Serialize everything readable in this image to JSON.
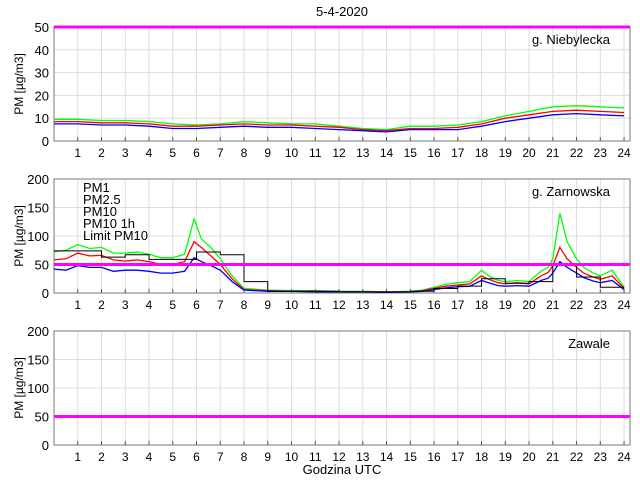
{
  "chart_data": {
    "type": "line",
    "title": "5-4-2020",
    "xlabel": "Godzina UTC",
    "xlim": [
      0,
      24.25
    ],
    "xticks": [
      1,
      2,
      3,
      4,
      5,
      6,
      7,
      8,
      9,
      10,
      11,
      12,
      13,
      14,
      15,
      16,
      17,
      18,
      19,
      20,
      21,
      22,
      23,
      24
    ],
    "limit_pm10": 50,
    "colors": {
      "PM1": "#0000ff",
      "PM2.5": "#ff0000",
      "PM10": "#00ff00",
      "PM10 1h": "#000000",
      "Limit PM10": "#ff00ff"
    },
    "legend": [
      "PM1",
      "PM2.5",
      "PM10",
      "PM10 1h",
      "Limit PM10"
    ],
    "panels": [
      {
        "station": "g. Niebylecka",
        "ylabel": "PM [µg/m3]",
        "ylim": [
          0,
          50
        ],
        "yticks": [
          0,
          10,
          20,
          30,
          40,
          50
        ],
        "x": [
          0,
          1,
          2,
          3,
          4,
          5,
          6,
          7,
          8,
          9,
          10,
          11,
          12,
          13,
          14,
          15,
          16,
          17,
          18,
          19,
          20,
          21,
          22,
          23,
          24
        ],
        "series": [
          {
            "name": "PM10",
            "values": [
              9.5,
              9.5,
              9,
              9,
              8.5,
              7.5,
              7,
              7.5,
              8.5,
              8,
              7.5,
              7.5,
              6.5,
              5.5,
              5,
              6.5,
              6.5,
              7,
              8.5,
              11,
              13,
              15,
              15.5,
              15,
              14.5
            ]
          },
          {
            "name": "PM2.5",
            "values": [
              8.5,
              8.5,
              8,
              8,
              7.5,
              6.5,
              6.5,
              7,
              7.5,
              7,
              7,
              6.5,
              6,
              5,
              4.5,
              5.5,
              5.5,
              6,
              7.5,
              10,
              11.5,
              13,
              13.5,
              13,
              12.5
            ]
          },
          {
            "name": "PM1",
            "values": [
              7.5,
              7.5,
              7,
              7,
              6.5,
              5.5,
              5.5,
              6,
              6.5,
              6,
              6,
              5.5,
              5,
              4.5,
              4,
              5,
              5,
              5,
              6.5,
              8.5,
              10,
              11.5,
              12,
              11.5,
              11
            ]
          }
        ]
      },
      {
        "station": "g. Zarnowska",
        "ylabel": "PM [µg/m3]",
        "ylim": [
          0,
          200
        ],
        "yticks": [
          0,
          50,
          100,
          150,
          200
        ],
        "x": [
          0,
          0.5,
          1,
          1.5,
          2,
          2.5,
          3,
          3.5,
          4,
          4.5,
          5,
          5.5,
          5.9,
          6.2,
          6.6,
          7,
          7.5,
          8,
          9,
          10,
          11,
          12,
          13,
          14,
          15,
          15.5,
          16,
          16.5,
          17,
          17.5,
          18,
          18.3,
          18.7,
          19,
          19.5,
          20,
          20.5,
          20.8,
          21,
          21.3,
          21.6,
          22,
          22.3,
          22.7,
          23,
          23.5,
          24
        ],
        "series": [
          {
            "name": "PM10",
            "values": [
              72,
              75,
              85,
              78,
              80,
              70,
              70,
              72,
              68,
              62,
              62,
              68,
              130,
              95,
              80,
              60,
              30,
              8,
              5,
              4,
              4,
              3,
              3,
              2,
              3,
              5,
              10,
              15,
              18,
              20,
              40,
              30,
              22,
              20,
              22,
              20,
              38,
              45,
              60,
              140,
              90,
              60,
              45,
              35,
              30,
              40,
              10
            ]
          },
          {
            "name": "PM2.5",
            "values": [
              58,
              60,
              70,
              65,
              66,
              58,
              56,
              58,
              55,
              50,
              50,
              55,
              90,
              80,
              65,
              50,
              25,
              6,
              4,
              3,
              3,
              2,
              2,
              2,
              2,
              4,
              8,
              12,
              14,
              16,
              30,
              24,
              18,
              16,
              18,
              16,
              30,
              36,
              48,
              80,
              60,
              45,
              35,
              28,
              24,
              30,
              8
            ]
          },
          {
            "name": "PM1",
            "values": [
              42,
              40,
              48,
              45,
              45,
              38,
              40,
              40,
              38,
              35,
              35,
              38,
              62,
              55,
              48,
              40,
              20,
              5,
              3,
              3,
              2,
              2,
              2,
              1,
              2,
              3,
              6,
              9,
              11,
              12,
              22,
              18,
              13,
              12,
              13,
              12,
              22,
              26,
              35,
              55,
              45,
              35,
              27,
              21,
              18,
              22,
              6
            ]
          }
        ],
        "pm10_1h": [
          74,
          74,
          63,
          67,
          59,
          59,
          72,
          67,
          20,
          3,
          3,
          3,
          2,
          2,
          2,
          3,
          8,
          12,
          25,
          17,
          20,
          48,
          28,
          10
        ]
      },
      {
        "station": "Zawale",
        "ylabel": "PM [µg/m3]",
        "ylim": [
          0,
          200
        ],
        "yticks": [
          0,
          50,
          100,
          150,
          200
        ],
        "series": []
      }
    ]
  }
}
